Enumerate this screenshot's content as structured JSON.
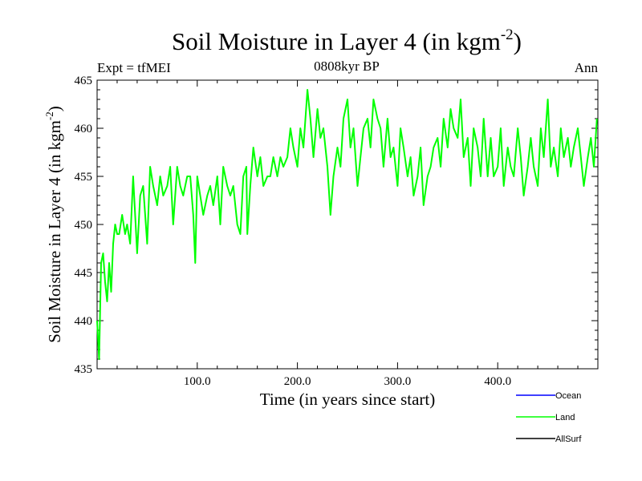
{
  "chart_data": {
    "type": "line",
    "title": "Soil Moisture in Layer 4 (in kgm",
    "title_superscript": "-2",
    "title_suffix": ")",
    "subtitle": "0808kyr BP",
    "label_left": "Expt = tfMEI",
    "label_right": "Ann",
    "xlabel": "Time (in years since start)",
    "ylabel": "Soil Moisture in Layer 4 (in kgm",
    "ylabel_superscript": "-2",
    "ylabel_suffix": ")",
    "xlim": [
      0,
      500
    ],
    "ylim": [
      435,
      465
    ],
    "xticks": [
      100,
      200,
      300,
      400
    ],
    "xtick_labels": [
      "100.0",
      "200.0",
      "300.0",
      "400.0"
    ],
    "yticks": [
      435,
      440,
      445,
      450,
      455,
      460,
      465
    ],
    "ytick_labels": [
      "435",
      "440",
      "445",
      "450",
      "455",
      "460",
      "465"
    ],
    "colors": {
      "ocean": "#0000ff",
      "land": "#00ff00",
      "allsurf": "#000000"
    },
    "legend": [
      {
        "name": "Ocean",
        "color": "#0000ff"
      },
      {
        "name": "Land",
        "color": "#00ff00"
      },
      {
        "name": "AllSurf",
        "color": "#000000"
      }
    ],
    "series": [
      {
        "name": "Land",
        "color": "#00ff00",
        "x": [
          0,
          2,
          4,
          6,
          8,
          10,
          12,
          14,
          16,
          18,
          20,
          22,
          25,
          28,
          30,
          33,
          36,
          40,
          43,
          46,
          50,
          53,
          56,
          60,
          63,
          66,
          70,
          73,
          76,
          80,
          83,
          86,
          90,
          93,
          96,
          98,
          100,
          103,
          106,
          110,
          113,
          116,
          120,
          123,
          126,
          130,
          133,
          136,
          140,
          143,
          146,
          149,
          150,
          153,
          156,
          160,
          163,
          166,
          170,
          173,
          176,
          180,
          183,
          186,
          190,
          193,
          196,
          200,
          203,
          206,
          210,
          213,
          216,
          220,
          223,
          226,
          230,
          233,
          236,
          240,
          243,
          246,
          250,
          253,
          256,
          260,
          263,
          266,
          270,
          273,
          276,
          280,
          283,
          286,
          290,
          293,
          296,
          300,
          303,
          306,
          310,
          313,
          316,
          320,
          323,
          326,
          330,
          333,
          336,
          340,
          343,
          346,
          350,
          353,
          356,
          360,
          363,
          366,
          370,
          373,
          376,
          380,
          383,
          386,
          390,
          393,
          396,
          400,
          403,
          406,
          410,
          413,
          416,
          420,
          423,
          426,
          430,
          433,
          436,
          440,
          443,
          446,
          450,
          453,
          456,
          460,
          463,
          466,
          470,
          473,
          476,
          480,
          483,
          486,
          490,
          493,
          496,
          499
        ],
        "values": [
          440,
          436,
          446,
          447,
          444,
          442,
          446,
          443,
          448,
          450,
          449,
          449,
          451,
          449,
          450,
          448,
          455,
          447,
          453,
          454,
          448,
          456,
          454,
          452,
          455,
          453,
          454,
          456,
          450,
          456,
          454,
          453,
          455,
          455,
          451,
          446,
          455,
          453,
          451,
          453,
          454,
          452,
          455,
          450,
          456,
          454,
          453,
          454,
          450,
          449,
          455,
          456,
          449,
          454,
          458,
          455,
          457,
          454,
          455,
          455,
          457,
          455,
          457,
          456,
          457,
          460,
          458,
          456,
          460,
          458,
          464,
          461,
          457,
          462,
          459,
          460,
          456,
          451,
          455,
          458,
          456,
          461,
          463,
          458,
          460,
          454,
          457,
          460,
          461,
          458,
          463,
          461,
          460,
          456,
          461,
          457,
          458,
          454,
          460,
          458,
          455,
          457,
          453,
          455,
          458,
          452,
          455,
          456,
          458,
          459,
          456,
          461,
          458,
          462,
          460,
          459,
          463,
          457,
          459,
          454,
          460,
          458,
          455,
          461,
          455,
          459,
          455,
          456,
          460,
          454,
          458,
          456,
          455,
          460,
          457,
          453,
          456,
          459,
          456,
          454,
          460,
          457,
          463,
          456,
          458,
          455,
          460,
          457,
          459,
          456,
          458,
          460,
          457,
          454,
          457,
          459,
          456,
          461
        ]
      }
    ]
  }
}
